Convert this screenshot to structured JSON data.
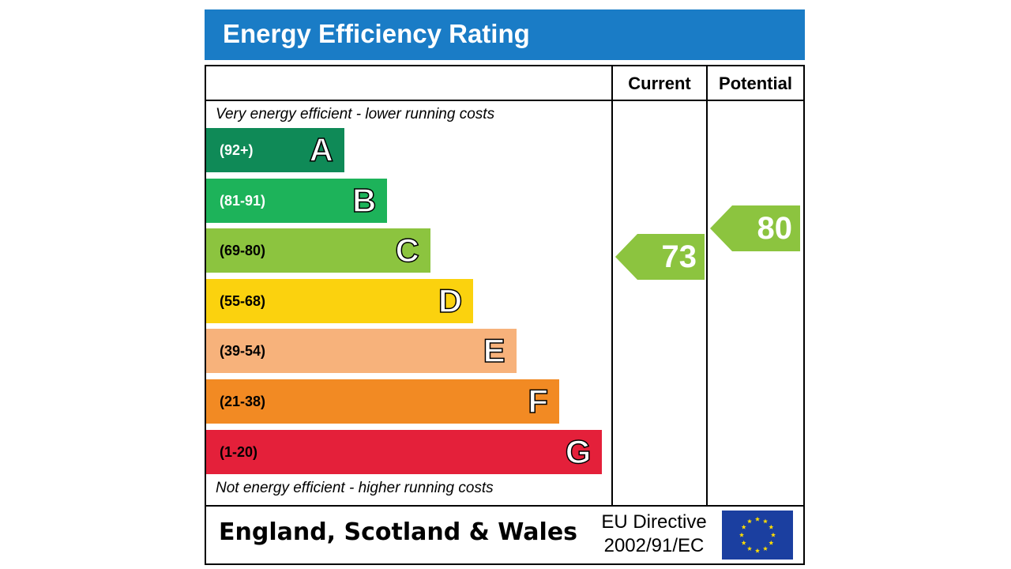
{
  "title": "Energy Efficiency Rating",
  "columns": {
    "current": "Current",
    "potential": "Potential"
  },
  "captions": {
    "top": "Very energy efficient - lower running costs",
    "bottom": "Not energy efficient - higher running costs"
  },
  "footer": {
    "country": "England, Scotland & Wales",
    "directive_line1": "EU Directive",
    "directive_line2": "2002/91/EC",
    "flag_icon": "eu-flag-icon"
  },
  "chart_data": {
    "type": "bar",
    "categories": [
      "A",
      "B",
      "C",
      "D",
      "E",
      "F",
      "G"
    ],
    "ranges": [
      "(92+)",
      "(81-91)",
      "(69-80)",
      "(55-68)",
      "(39-54)",
      "(21-38)",
      "(1-20)"
    ],
    "lower_bounds": [
      92,
      81,
      69,
      55,
      39,
      21,
      1
    ],
    "colors": [
      "#0f8a57",
      "#1db35a",
      "#8cc43f",
      "#fbd20e",
      "#f7b27b",
      "#f28a23",
      "#e4203a"
    ],
    "range_text_colors": [
      "#ffffff",
      "#ffffff",
      "#000000",
      "#000000",
      "#000000",
      "#000000",
      "#000000"
    ],
    "current": {
      "value": 73,
      "band": "C",
      "color": "#8cc43f"
    },
    "potential": {
      "value": 80,
      "band": "C",
      "color": "#8cc43f"
    }
  }
}
